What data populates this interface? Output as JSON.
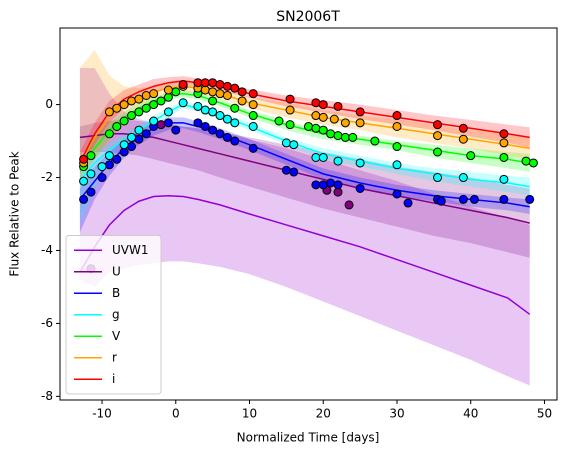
{
  "chart_data": {
    "type": "line",
    "title": "SN2006T",
    "xlabel": "Normalized Time [days]",
    "ylabel": "Flux Relative to Peak",
    "xlim": [
      -15.7,
      51.7
    ],
    "ylim": [
      -8.1,
      2.1
    ],
    "xticks": [
      -10,
      0,
      10,
      20,
      30,
      40,
      50
    ],
    "yticks": [
      -8,
      -6,
      -4,
      -2,
      0
    ],
    "legend": "lower left",
    "x": [
      -13,
      -11,
      -9,
      -7,
      -5,
      -3,
      -1,
      1,
      3,
      6,
      10,
      15,
      20,
      25,
      30,
      35,
      40,
      45,
      48
    ],
    "series": [
      {
        "name": "UVW1",
        "color": "#9400d3",
        "values": [
          -4.6,
          -3.9,
          -3.3,
          -2.9,
          -2.65,
          -2.52,
          -2.5,
          -2.52,
          -2.6,
          -2.75,
          -3.0,
          -3.3,
          -3.6,
          -3.9,
          -4.25,
          -4.6,
          -4.95,
          -5.3,
          -5.75
        ],
        "upper": [
          1.0,
          1.0,
          0.3,
          -0.2,
          -0.4,
          -0.5,
          -0.55,
          -0.6,
          -0.65,
          -0.75,
          -0.95,
          -1.2,
          -1.5,
          -1.8,
          -2.1,
          -2.45,
          -2.8,
          -3.1,
          -3.3
        ],
        "lower": [
          -4.8,
          -5.0,
          -4.6,
          -4.5,
          -4.4,
          -4.35,
          -4.3,
          -4.3,
          -4.35,
          -4.45,
          -4.65,
          -5.0,
          -5.4,
          -5.8,
          -6.2,
          -6.6,
          -7.0,
          -7.45,
          -7.7
        ],
        "points": {
          "x": [
            -11.5
          ],
          "values": [
            -4.5
          ]
        }
      },
      {
        "name": "U",
        "color": "#800080",
        "values": [
          -0.9,
          -0.85,
          -0.8,
          -0.8,
          -0.85,
          -0.9,
          -1.0,
          -1.1,
          -1.2,
          -1.35,
          -1.55,
          -1.8,
          -2.05,
          -2.3,
          -2.5,
          -2.7,
          -2.9,
          -3.1,
          -3.25
        ],
        "upper": [
          -0.6,
          -0.5,
          -0.45,
          -0.4,
          -0.45,
          -0.5,
          -0.55,
          -0.6,
          -0.65,
          -0.75,
          -0.9,
          -1.1,
          -1.3,
          -1.5,
          -1.7,
          -1.85,
          -2.0,
          -2.2,
          -2.3
        ],
        "lower": [
          -1.3,
          -1.3,
          -1.3,
          -1.35,
          -1.4,
          -1.5,
          -1.6,
          -1.7,
          -1.8,
          -2.0,
          -2.25,
          -2.55,
          -2.85,
          -3.1,
          -3.35,
          -3.6,
          -3.8,
          -4.05,
          -4.2
        ],
        "points": {
          "x": [
            -2,
            20.5,
            22,
            23.5
          ],
          "values": [
            -0.55,
            -2.35,
            -2.4,
            -2.75
          ]
        }
      },
      {
        "name": "B",
        "color": "#0000ff",
        "values": [
          -2.6,
          -2.1,
          -1.6,
          -1.2,
          -0.9,
          -0.65,
          -0.5,
          -0.5,
          -0.6,
          -0.8,
          -1.1,
          -1.5,
          -1.9,
          -2.15,
          -2.35,
          -2.5,
          -2.6,
          -2.7,
          -2.8
        ],
        "upper": [
          -2.3,
          -1.7,
          -1.3,
          -0.95,
          -0.7,
          -0.5,
          -0.35,
          -0.35,
          -0.45,
          -0.65,
          -0.95,
          -1.35,
          -1.75,
          -2.0,
          -2.2,
          -2.35,
          -2.45,
          -2.55,
          -2.6
        ],
        "lower": [
          -3.5,
          -2.6,
          -1.95,
          -1.45,
          -1.1,
          -0.85,
          -0.7,
          -0.65,
          -0.75,
          -0.95,
          -1.25,
          -1.65,
          -2.05,
          -2.3,
          -2.5,
          -2.65,
          -2.8,
          -2.9,
          -3.0
        ],
        "points": {
          "x": [
            -12.5,
            -11.5,
            -10,
            -9,
            -8,
            -7,
            -6,
            -5,
            -4,
            -3,
            -1,
            0,
            3,
            4,
            5,
            6,
            7,
            8,
            10.5,
            15,
            16,
            19,
            20,
            21,
            22,
            25,
            30,
            31.5,
            35.5,
            36,
            39,
            40.5,
            44.5,
            48
          ],
          "values": [
            -2.6,
            -2.4,
            -2.0,
            -1.65,
            -1.5,
            -1.3,
            -1.15,
            -0.95,
            -0.8,
            -0.6,
            -0.5,
            -0.7,
            -0.5,
            -0.6,
            -0.7,
            -0.8,
            -0.9,
            -1.0,
            -1.2,
            -1.8,
            -1.85,
            -2.2,
            -2.2,
            -2.15,
            -2.2,
            -2.3,
            -2.45,
            -2.7,
            -2.6,
            -2.65,
            -2.6,
            -2.6,
            -2.6,
            -2.6
          ]
        }
      },
      {
        "name": "g",
        "color": "#00ffff",
        "values": [
          -2.1,
          -1.6,
          -1.25,
          -0.95,
          -0.7,
          -0.45,
          -0.2,
          0.0,
          -0.1,
          -0.3,
          -0.6,
          -1.0,
          -1.35,
          -1.55,
          -1.75,
          -1.9,
          -2.05,
          -2.15,
          -2.25
        ],
        "upper": [
          -1.7,
          -1.3,
          -1.05,
          -0.8,
          -0.55,
          -0.3,
          -0.1,
          0.1,
          0.0,
          -0.2,
          -0.5,
          -0.9,
          -1.2,
          -1.4,
          -1.6,
          -1.75,
          -1.85,
          -1.95,
          -2.0
        ],
        "lower": [
          -3.3,
          -2.3,
          -1.5,
          -1.1,
          -0.85,
          -0.6,
          -0.35,
          -0.1,
          -0.2,
          -0.4,
          -0.7,
          -1.1,
          -1.5,
          -1.7,
          -1.9,
          -2.1,
          -2.25,
          -2.4,
          -2.5
        ],
        "points": {
          "x": [
            -12.5,
            -11.5,
            -10,
            -9,
            -7,
            -6,
            -5,
            -3,
            -1,
            1,
            3,
            4,
            5,
            6,
            7,
            8,
            10.5,
            15,
            16,
            19,
            20,
            22,
            25,
            30,
            35.5,
            39,
            44.5
          ],
          "values": [
            -2.1,
            -1.9,
            -1.7,
            -1.4,
            -1.1,
            -0.9,
            -0.7,
            -0.45,
            -0.2,
            0.05,
            -0.05,
            -0.15,
            -0.2,
            -0.3,
            -0.4,
            -0.5,
            -0.6,
            -1.05,
            -1.1,
            -1.45,
            -1.45,
            -1.55,
            -1.6,
            -1.65,
            -2.0,
            -2.0,
            -2.05
          ]
        }
      },
      {
        "name": "V",
        "color": "#00ff00",
        "values": [
          -1.8,
          -1.2,
          -0.7,
          -0.35,
          -0.1,
          0.1,
          0.25,
          0.3,
          0.25,
          0.05,
          -0.25,
          -0.55,
          -0.8,
          -0.95,
          -1.1,
          -1.25,
          -1.4,
          -1.5,
          -1.6
        ],
        "upper": [
          -1.5,
          -0.9,
          -0.5,
          -0.2,
          0.05,
          0.2,
          0.35,
          0.4,
          0.35,
          0.15,
          -0.15,
          -0.45,
          -0.7,
          -0.85,
          -1.0,
          -1.1,
          -1.2,
          -1.3,
          -1.35
        ],
        "lower": [
          -2.1,
          -1.5,
          -0.95,
          -0.55,
          -0.25,
          0.0,
          0.15,
          0.2,
          0.15,
          -0.05,
          -0.35,
          -0.7,
          -0.95,
          -1.1,
          -1.25,
          -1.45,
          -1.6,
          -1.75,
          -1.85
        ],
        "points": {
          "x": [
            -12.5,
            -11.5,
            -9,
            -8,
            -7,
            -6,
            -5,
            -4,
            -3,
            -2,
            -1,
            0,
            3,
            5,
            8,
            10.5,
            14,
            15.5,
            18,
            19,
            20,
            21,
            22,
            23,
            24,
            27,
            30,
            35.5,
            40,
            44.5,
            47.5,
            48.5
          ],
          "values": [
            -1.7,
            -1.4,
            -0.8,
            -0.6,
            -0.45,
            -0.3,
            -0.2,
            -0.1,
            0.0,
            0.1,
            0.2,
            0.35,
            0.3,
            0.1,
            -0.1,
            -0.3,
            -0.45,
            -0.55,
            -0.6,
            -0.65,
            -0.7,
            -0.8,
            -0.85,
            -0.9,
            -0.9,
            -1.0,
            -1.15,
            -1.3,
            -1.4,
            -1.45,
            -1.55,
            -1.6
          ]
        }
      },
      {
        "name": "r",
        "color": "#ffa500",
        "values": [
          -1.6,
          -0.9,
          -0.35,
          0.0,
          0.2,
          0.35,
          0.45,
          0.5,
          0.45,
          0.3,
          0.05,
          -0.15,
          -0.35,
          -0.5,
          -0.65,
          -0.8,
          -0.95,
          -1.1,
          -1.2
        ],
        "upper": [
          1.0,
          1.5,
          0.8,
          0.5,
          0.45,
          0.5,
          0.6,
          0.65,
          0.6,
          0.45,
          0.2,
          0.05,
          -0.15,
          -0.3,
          -0.4,
          -0.55,
          -0.7,
          -0.8,
          -0.9
        ],
        "lower": [
          -1.8,
          -1.5,
          -1.0,
          -0.4,
          -0.1,
          0.15,
          0.3,
          0.35,
          0.3,
          0.15,
          -0.1,
          -0.35,
          -0.55,
          -0.7,
          -0.9,
          -1.05,
          -1.2,
          -1.4,
          -1.5
        ],
        "points": {
          "x": [
            -12.5,
            -9,
            -8,
            -7,
            -6,
            -5,
            -4,
            -3,
            -1,
            1,
            3,
            4,
            5,
            6,
            7,
            9,
            10.5,
            15.5,
            19,
            20,
            21.5,
            23,
            25,
            30,
            35.5,
            39,
            44.5
          ],
          "values": [
            -1.6,
            -0.2,
            -0.1,
            0.0,
            0.1,
            0.15,
            0.25,
            0.3,
            0.4,
            0.5,
            0.45,
            0.4,
            0.35,
            0.3,
            0.25,
            0.1,
            0.0,
            -0.15,
            -0.3,
            -0.35,
            -0.4,
            -0.5,
            -0.5,
            -0.6,
            -0.85,
            -0.95,
            -1.05
          ]
        }
      },
      {
        "name": "i",
        "color": "#ff0000",
        "values": [
          -1.6,
          -0.8,
          -0.2,
          0.15,
          0.35,
          0.5,
          0.6,
          0.65,
          0.6,
          0.5,
          0.3,
          0.1,
          -0.05,
          -0.2,
          -0.35,
          -0.5,
          -0.65,
          -0.8,
          -0.9
        ],
        "upper": [
          -1.3,
          -0.5,
          0.1,
          0.4,
          0.55,
          0.7,
          0.75,
          0.78,
          0.72,
          0.62,
          0.42,
          0.25,
          0.12,
          0.0,
          -0.15,
          -0.3,
          -0.42,
          -0.55,
          -0.62
        ],
        "lower": [
          -1.9,
          -1.1,
          -0.5,
          -0.1,
          0.15,
          0.3,
          0.45,
          0.52,
          0.48,
          0.38,
          0.18,
          -0.05,
          -0.22,
          -0.4,
          -0.55,
          -0.7,
          -0.88,
          -1.05,
          -1.18
        ],
        "points": {
          "x": [
            -12.5,
            1,
            3,
            4,
            5,
            6,
            7,
            8,
            9,
            10.5,
            15.5,
            19,
            20,
            22,
            25,
            30,
            35.5,
            39,
            44.5
          ],
          "values": [
            -1.5,
            0.55,
            0.6,
            0.6,
            0.6,
            0.55,
            0.5,
            0.45,
            0.35,
            0.3,
            0.15,
            0.05,
            0.0,
            -0.05,
            -0.2,
            -0.3,
            -0.55,
            -0.65,
            -0.8
          ]
        }
      }
    ]
  }
}
